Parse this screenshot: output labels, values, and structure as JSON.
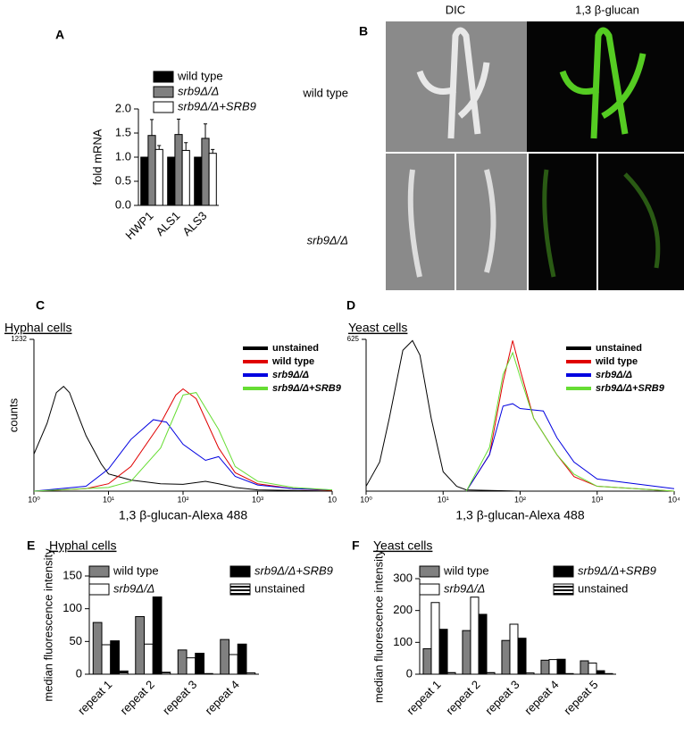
{
  "figure_b": {
    "label": "B",
    "columns": [
      "DIC",
      "1,3 β-glucan"
    ],
    "rows": [
      "wild type",
      "srb9Δ/Δ"
    ]
  },
  "chart_data": [
    {
      "label": "A",
      "type": "bar",
      "categories": [
        "HWP1",
        "ALS1",
        "ALS3"
      ],
      "series": [
        {
          "name": "wild type",
          "color": "#000000",
          "values": [
            1,
            1,
            1
          ]
        },
        {
          "name": "srb9Δ/Δ",
          "color": "#808080",
          "values": [
            1.45,
            1.47,
            1.39
          ],
          "errors": [
            0.33,
            0.32,
            0.3
          ]
        },
        {
          "name": "srb9Δ/Δ+SRB9",
          "color": "#ffffff",
          "values": [
            1.16,
            1.14,
            1.08
          ],
          "errors": [
            0.08,
            0.16,
            0.08
          ]
        }
      ],
      "ylabel": "fold mRNA",
      "ylim": [
        0,
        2
      ],
      "yticks": [
        {
          "value": 0,
          "label": "0.0"
        },
        {
          "value": 0.5,
          "label": "0.5"
        },
        {
          "value": 1,
          "label": "1.0"
        },
        {
          "value": 1.5,
          "label": "1.5"
        },
        {
          "value": 2,
          "label": "2.0"
        }
      ]
    },
    {
      "label": "C",
      "type": "line",
      "title": "Hyphal cells",
      "xlabel": "1,3 β-glucan-Alexa 488",
      "ylabel": "counts",
      "xscale": "log",
      "xlim": [
        1,
        10000
      ],
      "xticks": [
        {
          "value": 1,
          "label": "10⁰"
        },
        {
          "value": 10,
          "label": "10¹"
        },
        {
          "value": 100,
          "label": "10²"
        },
        {
          "value": 1000,
          "label": "10³"
        },
        {
          "value": 10000,
          "label": "10"
        }
      ],
      "ylim": [
        0,
        1232
      ],
      "yticks": [
        1232
      ],
      "series": [
        {
          "name": "unstained",
          "color": "#000000",
          "x": [
            1,
            1.5,
            2,
            2.5,
            3,
            4,
            5,
            8,
            10,
            20,
            50,
            100,
            200,
            300,
            500,
            1000,
            10000
          ],
          "values": [
            300,
            550,
            800,
            850,
            800,
            600,
            450,
            220,
            140,
            90,
            60,
            55,
            80,
            60,
            30,
            10,
            0
          ]
        },
        {
          "name": "wild type",
          "color": "#e00000",
          "x": [
            1,
            5,
            10,
            20,
            50,
            80,
            100,
            150,
            300,
            500,
            1000,
            3000,
            10000
          ],
          "values": [
            0,
            20,
            60,
            200,
            550,
            780,
            830,
            750,
            350,
            150,
            60,
            20,
            5
          ]
        },
        {
          "name": "srb9Δ/Δ",
          "color": "#0000e0",
          "x": [
            1,
            5,
            10,
            20,
            40,
            60,
            100,
            200,
            300,
            500,
            1000,
            3000,
            10000
          ],
          "values": [
            0,
            40,
            180,
            420,
            580,
            560,
            380,
            250,
            280,
            120,
            50,
            20,
            10
          ]
        },
        {
          "name": "srb9Δ/Δ+SRB9",
          "color": "#66dd33",
          "x": [
            1,
            10,
            20,
            50,
            100,
            150,
            300,
            500,
            1000,
            3000,
            10000
          ],
          "values": [
            0,
            30,
            80,
            350,
            780,
            800,
            500,
            200,
            80,
            30,
            10
          ]
        }
      ]
    },
    {
      "label": "D",
      "type": "line",
      "title": "Yeast cells",
      "xlabel": "1,3 β-glucan-Alexa 488",
      "xscale": "log",
      "xlim": [
        1,
        10000
      ],
      "xticks": [
        {
          "value": 1,
          "label": "10⁰"
        },
        {
          "value": 10,
          "label": "10¹"
        },
        {
          "value": 100,
          "label": "10²"
        },
        {
          "value": 1000,
          "label": "10³"
        },
        {
          "value": 10000,
          "label": "10⁴"
        }
      ],
      "ylim": [
        0,
        625
      ],
      "yticks": [
        625
      ],
      "series": [
        {
          "name": "unstained",
          "color": "#000000",
          "x": [
            1,
            1.5,
            2,
            3,
            4,
            5,
            7,
            10,
            15,
            20,
            100
          ],
          "values": [
            20,
            120,
            300,
            580,
            620,
            560,
            300,
            80,
            20,
            5,
            0
          ]
        },
        {
          "name": "wild type",
          "color": "#e00000",
          "x": [
            20,
            40,
            60,
            80,
            100,
            150,
            300,
            500,
            1000,
            10000
          ],
          "values": [
            0,
            150,
            450,
            620,
            500,
            300,
            150,
            60,
            20,
            0
          ]
        },
        {
          "name": "srb9Δ/Δ",
          "color": "#0000e0",
          "x": [
            20,
            40,
            60,
            80,
            100,
            200,
            300,
            500,
            1000,
            10000
          ],
          "values": [
            0,
            150,
            350,
            360,
            340,
            330,
            220,
            120,
            50,
            10
          ]
        },
        {
          "name": "srb9Δ/Δ+SRB9",
          "color": "#66dd33",
          "x": [
            20,
            40,
            60,
            80,
            100,
            150,
            300,
            500,
            1000,
            10000
          ],
          "values": [
            0,
            180,
            480,
            570,
            470,
            300,
            150,
            70,
            20,
            0
          ]
        }
      ]
    },
    {
      "label": "E",
      "type": "bar",
      "title": "Hyphal cells",
      "categories": [
        "repeat 1",
        "repeat 2",
        "repeat 3",
        "repeat 4"
      ],
      "series": [
        {
          "name": "wild type",
          "color": "#808080",
          "values": [
            79,
            88,
            37,
            53
          ]
        },
        {
          "name": "srb9Δ/Δ",
          "color": "#ffffff",
          "values": [
            45,
            46,
            25,
            30
          ]
        },
        {
          "name": "srb9Δ/Δ+SRB9",
          "color": "#000000",
          "values": [
            51,
            118,
            32,
            46
          ]
        },
        {
          "name": "unstained",
          "color": "#000000",
          "hatch": true,
          "values": [
            5,
            3,
            1,
            2
          ]
        }
      ],
      "ylabel": "median fluorescence intensity",
      "ylim": [
        0,
        150
      ],
      "yticks": [
        0,
        50,
        100,
        150
      ]
    },
    {
      "label": "F",
      "type": "bar",
      "title": "Yeast cells",
      "categories": [
        "repeat 1",
        "repeat 2",
        "repeat 3",
        "repeat 4",
        "repeat 5"
      ],
      "series": [
        {
          "name": "wild type",
          "color": "#808080",
          "values": [
            80,
            137,
            106,
            44,
            42
          ]
        },
        {
          "name": "srb9Δ/Δ",
          "color": "#ffffff",
          "values": [
            225,
            242,
            157,
            46,
            35
          ]
        },
        {
          "name": "srb9Δ/Δ+SRB9",
          "color": "#000000",
          "values": [
            141,
            188,
            113,
            47,
            11
          ]
        },
        {
          "name": "unstained",
          "color": "#000000",
          "hatch": true,
          "values": [
            5,
            5,
            4,
            2,
            2
          ]
        }
      ],
      "ylabel": "median fluorescence intensity",
      "ylim": [
        0,
        300
      ],
      "yticks": [
        0,
        100,
        200,
        300
      ]
    }
  ]
}
